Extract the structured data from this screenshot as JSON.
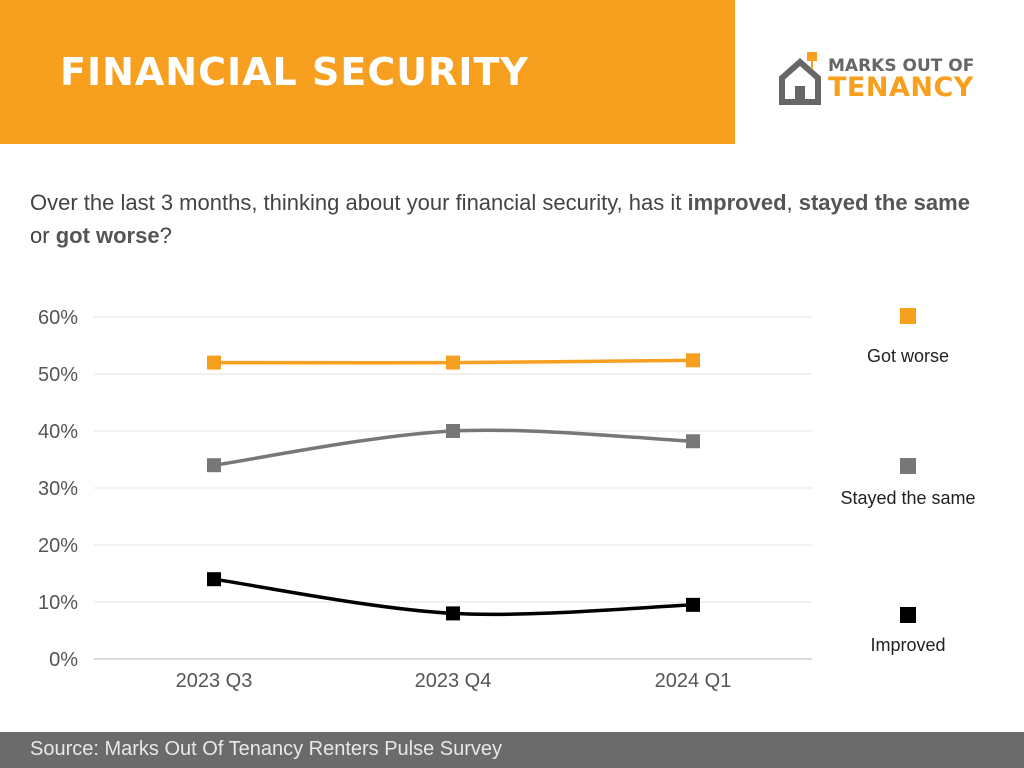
{
  "header": {
    "title": "FINANCIAL SECURITY",
    "band_color": "#F7A01F",
    "logo_line1": "MARKS OUT OF",
    "logo_line2": "TENANCY",
    "logo_icon": "house-icon",
    "logo_gray": "#666666",
    "logo_accent": "#F7A01F"
  },
  "question": {
    "p1": "Over the last 3 months, thinking about your financial security, has it ",
    "b1": "improved",
    "p2": ", ",
    "b2": "stayed the same",
    "p3": " or ",
    "b3": "got worse",
    "p4": "?"
  },
  "footer": {
    "text": "Source: Marks Out Of Tenancy Renters Pulse Survey",
    "band_color": "#6b6b6b"
  },
  "chart_data": {
    "type": "line",
    "categories": [
      "2023 Q3",
      "2023 Q4",
      "2024 Q1"
    ],
    "ylim": [
      0,
      60
    ],
    "yticks": [
      0,
      10,
      20,
      30,
      40,
      50,
      60
    ],
    "ytick_labels": [
      "0%",
      "10%",
      "20%",
      "30%",
      "40%",
      "50%",
      "60%"
    ],
    "grid": true,
    "smooth": true,
    "legend_position": "right",
    "series": [
      {
        "name": "Got worse",
        "values": [
          52,
          52,
          52.4
        ],
        "color": "#F7A01F"
      },
      {
        "name": "Stayed the same",
        "values": [
          34,
          40,
          38.2
        ],
        "color": "#777777"
      },
      {
        "name": "Improved",
        "values": [
          14,
          8,
          9.5
        ],
        "color": "#000000"
      }
    ]
  }
}
